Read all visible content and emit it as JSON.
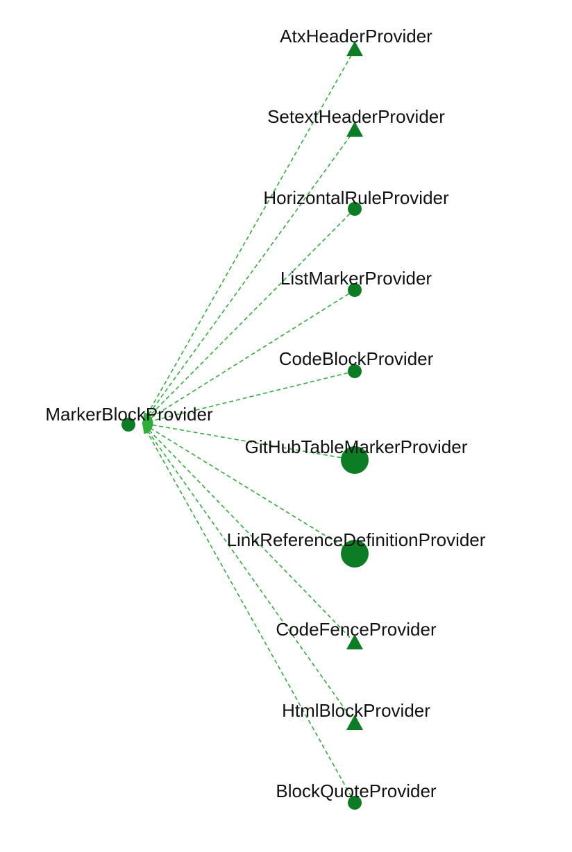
{
  "diagram": {
    "colors": {
      "node": "#0c7d25",
      "edge": "#2fae3a",
      "arrow": "#2fae3a",
      "label": "#111111",
      "background": "#ffffff"
    },
    "edge_style": "dashed",
    "source": {
      "label": "MarkerBlockProvider",
      "shape": "circle"
    },
    "targets": [
      {
        "label": "AtxHeaderProvider",
        "shape": "triangle"
      },
      {
        "label": "SetextHeaderProvider",
        "shape": "triangle"
      },
      {
        "label": "HorizontalRuleProvider",
        "shape": "circle"
      },
      {
        "label": "ListMarkerProvider",
        "shape": "circle"
      },
      {
        "label": "CodeBlockProvider",
        "shape": "circle"
      },
      {
        "label": "GitHubTableMarkerProvider",
        "shape": "circle-large"
      },
      {
        "label": "LinkReferenceDefinitionProvider",
        "shape": "circle-large"
      },
      {
        "label": "CodeFenceProvider",
        "shape": "triangle"
      },
      {
        "label": "HtmlBlockProvider",
        "shape": "triangle"
      },
      {
        "label": "BlockQuoteProvider",
        "shape": "circle"
      }
    ],
    "edges": [
      {
        "from": "AtxHeaderProvider",
        "to": "MarkerBlockProvider"
      },
      {
        "from": "SetextHeaderProvider",
        "to": "MarkerBlockProvider"
      },
      {
        "from": "HorizontalRuleProvider",
        "to": "MarkerBlockProvider"
      },
      {
        "from": "ListMarkerProvider",
        "to": "MarkerBlockProvider"
      },
      {
        "from": "CodeBlockProvider",
        "to": "MarkerBlockProvider"
      },
      {
        "from": "GitHubTableMarkerProvider",
        "to": "MarkerBlockProvider"
      },
      {
        "from": "LinkReferenceDefinitionProvider",
        "to": "MarkerBlockProvider"
      },
      {
        "from": "CodeFenceProvider",
        "to": "MarkerBlockProvider"
      },
      {
        "from": "HtmlBlockProvider",
        "to": "MarkerBlockProvider"
      },
      {
        "from": "BlockQuoteProvider",
        "to": "MarkerBlockProvider"
      }
    ]
  }
}
